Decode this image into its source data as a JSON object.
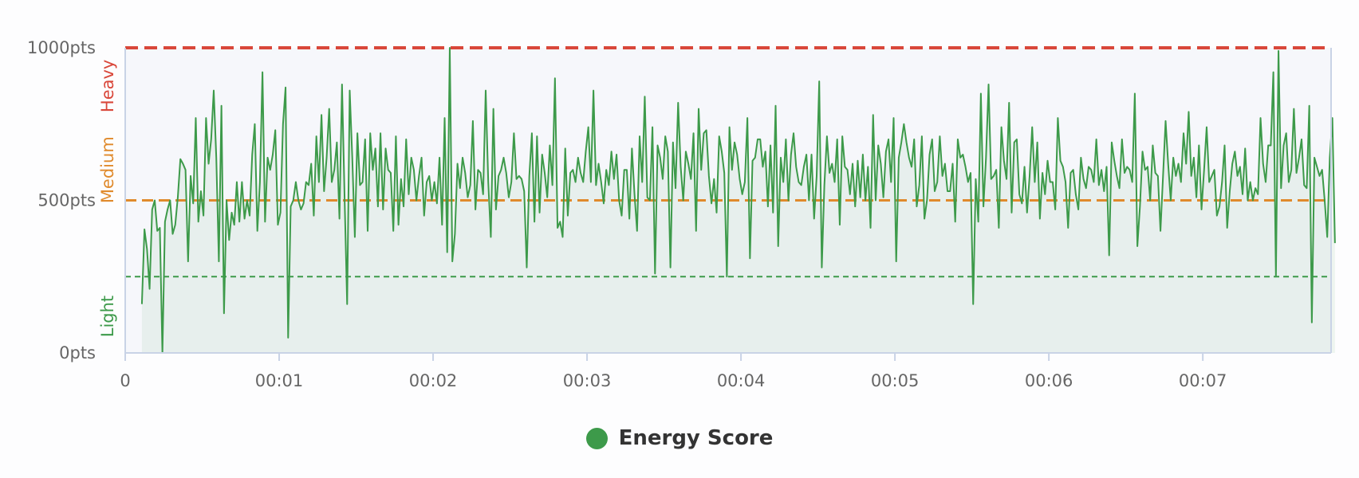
{
  "colors": {
    "series": "#3d9a4a",
    "heavy": "#d9473a",
    "medium": "#e08a2c",
    "light": "#3d9a4a",
    "axis": "#c9d3e6",
    "plot_bg": "#f6f7fb",
    "tick_text": "#666666"
  },
  "chart_data": {
    "type": "area",
    "title": "",
    "xlabel": "",
    "ylabel": "",
    "x_unit": "seconds",
    "xlim": [
      0,
      470
    ],
    "ylim": [
      0,
      1000
    ],
    "y_ticks": [
      "0pts",
      "500pts",
      "1000pts"
    ],
    "y_tick_values": [
      0,
      500,
      1000
    ],
    "x_ticks": [
      "0",
      "00:01",
      "00:02",
      "00:03",
      "00:04",
      "00:05",
      "00:06",
      "00:07"
    ],
    "x_tick_values": [
      0,
      60,
      120,
      180,
      240,
      300,
      360,
      420
    ],
    "grid": false,
    "legend": "bottom-center",
    "thresholds": [
      {
        "label": "Heavy",
        "value": 1000,
        "color": "#d9473a",
        "style": "thick-dashed"
      },
      {
        "label": "Medium",
        "value": 500,
        "color": "#e08a2c",
        "style": "dashed"
      },
      {
        "label": "Light",
        "value": 250,
        "color": "#3d9a4a",
        "style": "dashed"
      }
    ],
    "zone_labels": [
      {
        "label": "Heavy",
        "color": "#d9473a",
        "y_center": 875
      },
      {
        "label": "Medium",
        "color": "#e08a2c",
        "y_center": 600
      },
      {
        "label": "Light",
        "color": "#3d9a4a",
        "y_center": 120
      }
    ],
    "series": [
      {
        "name": "Energy Score",
        "color": "#3d9a4a",
        "x_start": 6.5,
        "x_step": 1,
        "values": [
          160,
          405,
          340,
          210,
          470,
          500,
          400,
          410,
          0,
          430,
          470,
          500,
          390,
          420,
          510,
          635,
          620,
          600,
          300,
          580,
          490,
          770,
          430,
          530,
          450,
          770,
          620,
          700,
          860,
          640,
          300,
          810,
          130,
          500,
          370,
          460,
          420,
          560,
          430,
          560,
          440,
          500,
          450,
          650,
          750,
          400,
          560,
          920,
          430,
          640,
          600,
          650,
          730,
          420,
          460,
          750,
          870,
          50,
          480,
          500,
          560,
          500,
          470,
          490,
          560,
          550,
          620,
          450,
          710,
          560,
          780,
          530,
          640,
          800,
          560,
          600,
          690,
          440,
          880,
          510,
          160,
          860,
          640,
          380,
          720,
          550,
          560,
          700,
          400,
          720,
          600,
          670,
          480,
          720,
          470,
          670,
          600,
          590,
          400,
          710,
          420,
          570,
          480,
          700,
          520,
          640,
          600,
          500,
          580,
          640,
          450,
          560,
          580,
          500,
          560,
          490,
          640,
          420,
          770,
          330,
          1000,
          300,
          390,
          620,
          540,
          640,
          590,
          510,
          550,
          760,
          470,
          600,
          590,
          520,
          860,
          560,
          380,
          800,
          470,
          580,
          600,
          640,
          590,
          510,
          560,
          720,
          570,
          580,
          570,
          530,
          280,
          580,
          720,
          430,
          710,
          460,
          650,
          590,
          510,
          680,
          550,
          900,
          410,
          430,
          380,
          670,
          450,
          590,
          600,
          560,
          640,
          590,
          560,
          660,
          740,
          560,
          860,
          550,
          620,
          560,
          490,
          600,
          550,
          660,
          570,
          650,
          500,
          450,
          600,
          600,
          440,
          670,
          520,
          400,
          710,
          560,
          840,
          510,
          500,
          740,
          260,
          680,
          640,
          570,
          710,
          660,
          280,
          690,
          540,
          820,
          610,
          500,
          660,
          620,
          570,
          720,
          400,
          800,
          600,
          720,
          730,
          580,
          490,
          570,
          460,
          710,
          660,
          590,
          250,
          740,
          600,
          690,
          650,
          570,
          520,
          560,
          770,
          310,
          630,
          640,
          700,
          700,
          610,
          660,
          480,
          680,
          460,
          810,
          350,
          640,
          560,
          700,
          500,
          650,
          720,
          610,
          560,
          550,
          610,
          650,
          500,
          650,
          440,
          580,
          890,
          280,
          550,
          710,
          590,
          620,
          560,
          700,
          420,
          710,
          610,
          600,
          520,
          620,
          480,
          630,
          510,
          650,
          500,
          610,
          410,
          780,
          500,
          680,
          620,
          510,
          660,
          700,
          560,
          770,
          300,
          640,
          690,
          750,
          690,
          640,
          610,
          700,
          480,
          550,
          710,
          440,
          500,
          650,
          700,
          530,
          560,
          710,
          580,
          620,
          530,
          530,
          620,
          430,
          700,
          640,
          650,
          610,
          560,
          590,
          160,
          570,
          430,
          850,
          480,
          640,
          880,
          570,
          580,
          600,
          410,
          740,
          630,
          570,
          820,
          460,
          690,
          700,
          520,
          490,
          610,
          460,
          580,
          740,
          560,
          690,
          440,
          590,
          520,
          630,
          560,
          560,
          470,
          770,
          630,
          610,
          560,
          410,
          590,
          600,
          520,
          470,
          640,
          570,
          540,
          610,
          600,
          560,
          700,
          550,
          600,
          530,
          610,
          320,
          690,
          630,
          580,
          540,
          700,
          590,
          610,
          600,
          560,
          850,
          350,
          480,
          660,
          600,
          610,
          500,
          680,
          590,
          580,
          400,
          580,
          760,
          620,
          500,
          640,
          580,
          620,
          560,
          720,
          620,
          790,
          580,
          640,
          510,
          680,
          470,
          600,
          740,
          560,
          580,
          600,
          450,
          480,
          560,
          680,
          410,
          530,
          620,
          660,
          580,
          610,
          520,
          670,
          500,
          560,
          500,
          540,
          520,
          770,
          620,
          560,
          680,
          680,
          920,
          250,
          990,
          540,
          680,
          720,
          560,
          600,
          800,
          590,
          640,
          700,
          550,
          540,
          810,
          100,
          640,
          610,
          580,
          600,
          500,
          380,
          640,
          770,
          360
        ]
      }
    ]
  }
}
